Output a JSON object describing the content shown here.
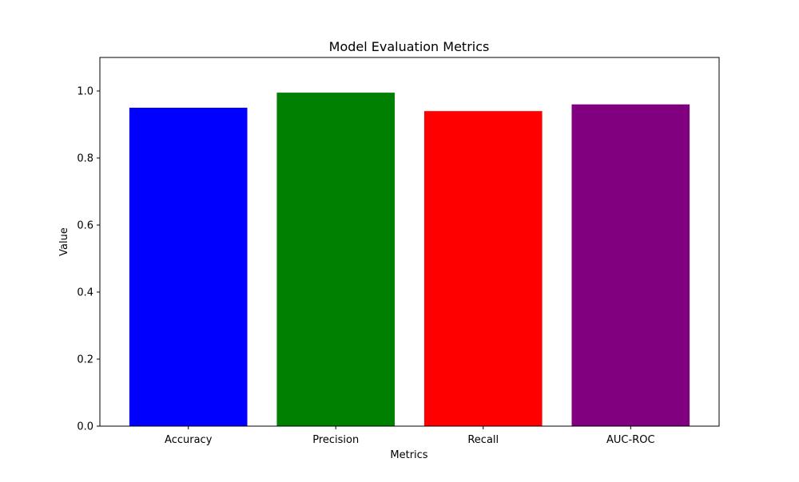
{
  "chart_data": {
    "type": "bar",
    "title": "Model Evaluation Metrics",
    "xlabel": "Metrics",
    "ylabel": "Value",
    "categories": [
      "Accuracy",
      "Precision",
      "Recall",
      "AUC-ROC"
    ],
    "values": [
      0.95,
      0.995,
      0.94,
      0.96
    ],
    "colors": [
      "#0000ff",
      "#008000",
      "#ff0000",
      "#800080"
    ],
    "ylim": [
      0,
      1.1
    ],
    "yticks": [
      0.0,
      0.2,
      0.4,
      0.6,
      0.8,
      1.0
    ],
    "ytick_labels": [
      "0.0",
      "0.2",
      "0.4",
      "0.6",
      "0.8",
      "1.0"
    ],
    "grid": false,
    "legend": "none"
  }
}
